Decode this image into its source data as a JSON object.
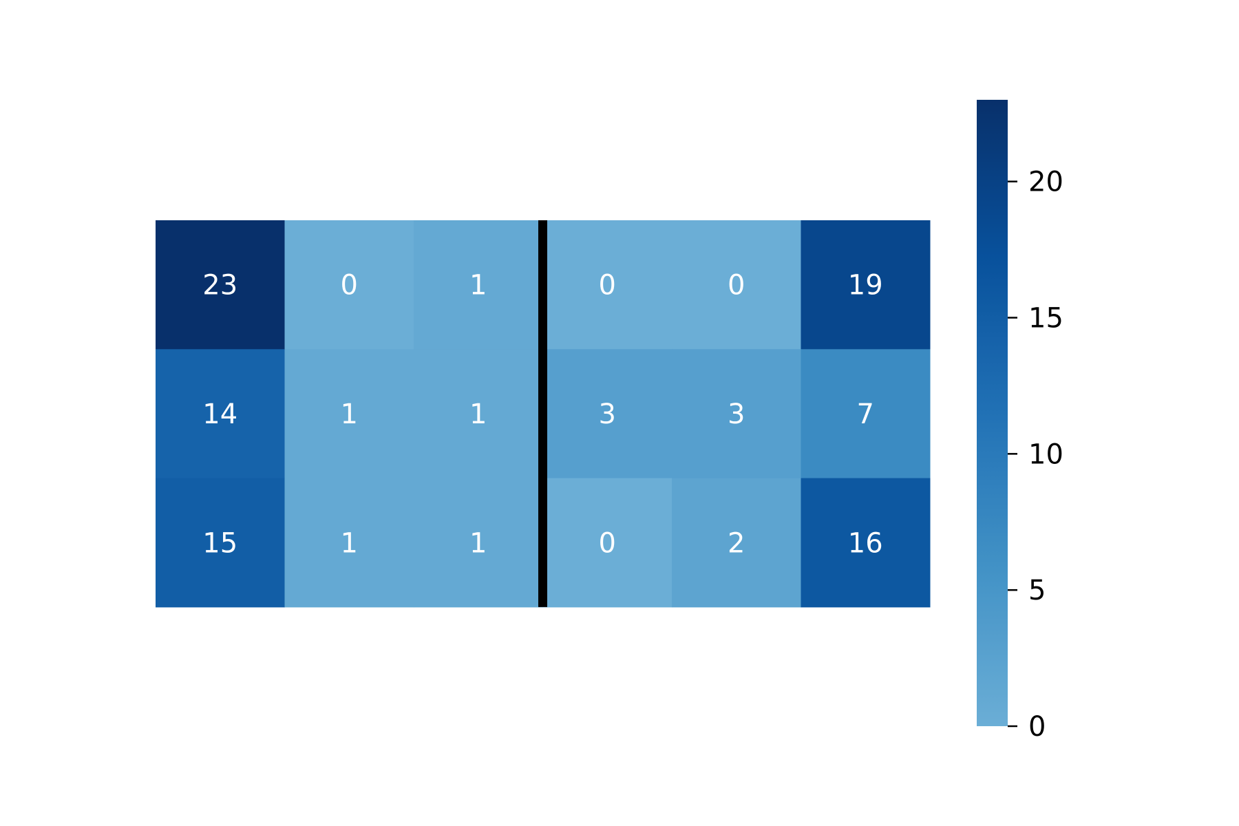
{
  "chart_data": {
    "type": "heatmap",
    "title": "",
    "xlabel": "",
    "ylabel": "",
    "rows": 3,
    "cols": 6,
    "values": [
      [
        23,
        0,
        1,
        0,
        0,
        19
      ],
      [
        14,
        1,
        1,
        3,
        3,
        7
      ],
      [
        15,
        1,
        1,
        0,
        2,
        16
      ]
    ],
    "separator_after_column": 3,
    "colormap": "Blues",
    "colorbar": {
      "min": 0,
      "max": 23,
      "ticks": [
        0,
        5,
        10,
        15,
        20
      ],
      "tick_labels": [
        "0",
        "5",
        "10",
        "15",
        "20"
      ],
      "low_color": "#6baed6",
      "high_color": "#08306b"
    },
    "cell_text_color": "#ffffff",
    "separator_color": "#000000"
  }
}
